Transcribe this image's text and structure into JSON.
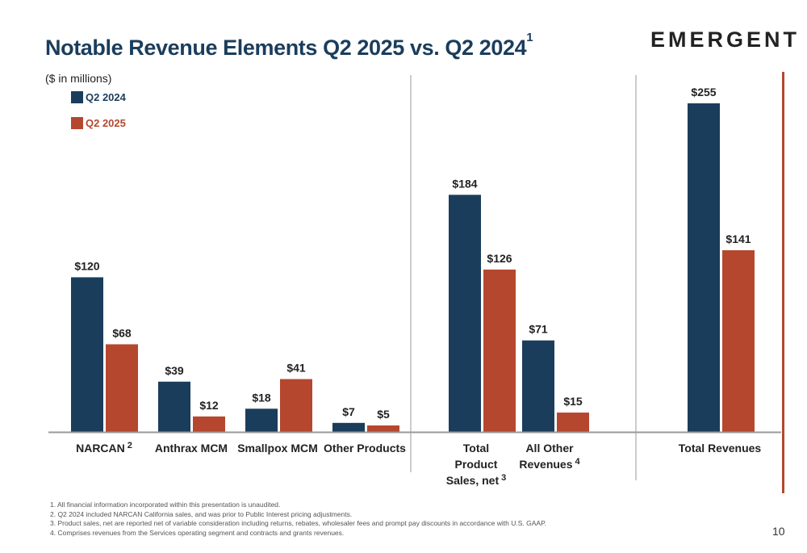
{
  "slide": {
    "title": "Notable Revenue Elements Q2 2025 vs. Q2 2024",
    "title_footnote": "1",
    "units": "($ in millions)",
    "logo": "EMERGENT",
    "page_number": "10",
    "footnotes": [
      "1.   All financial information incorporated within this presentation is unaudited.",
      "2.   Q2 2024 included NARCAN California sales, and was prior to Public Interest pricing adjustments.",
      "3.   Product sales, net are reported net of variable consideration including returns, rebates, wholesaler fees and prompt pay discounts in accordance with U.S. GAAP.",
      "4.   Comprises revenues from the Services operating segment and contracts and grants revenues."
    ]
  },
  "colors": {
    "q2_2024": "#1b3d5c",
    "q2_2025": "#b5472f",
    "title": "#1b3d5c",
    "divider": "#9a9a9a"
  },
  "chart_data": {
    "type": "bar",
    "units": "$ in millions",
    "categories": [
      "NARCAN",
      "Anthrax MCM",
      "Smallpox MCM",
      "Other Products",
      "Total Product Sales, net",
      "All Other Revenues",
      "Total Revenues"
    ],
    "category_footnotes": [
      "2",
      "",
      "",
      "",
      "3",
      "4",
      ""
    ],
    "series": [
      {
        "name": "Q2 2024",
        "values": [
          120,
          39,
          18,
          7,
          184,
          71,
          255
        ],
        "labels": [
          "$120",
          "$39",
          "$18",
          "$7",
          "$184",
          "$71",
          "$255"
        ]
      },
      {
        "name": "Q2 2025",
        "values": [
          68,
          12,
          41,
          5,
          126,
          15,
          141
        ],
        "labels": [
          "$68",
          "$12",
          "$41",
          "$5",
          "$126",
          "$15",
          "$141"
        ]
      }
    ],
    "ylim": [
      0,
      255
    ],
    "legend": "top-left",
    "grid": false
  }
}
